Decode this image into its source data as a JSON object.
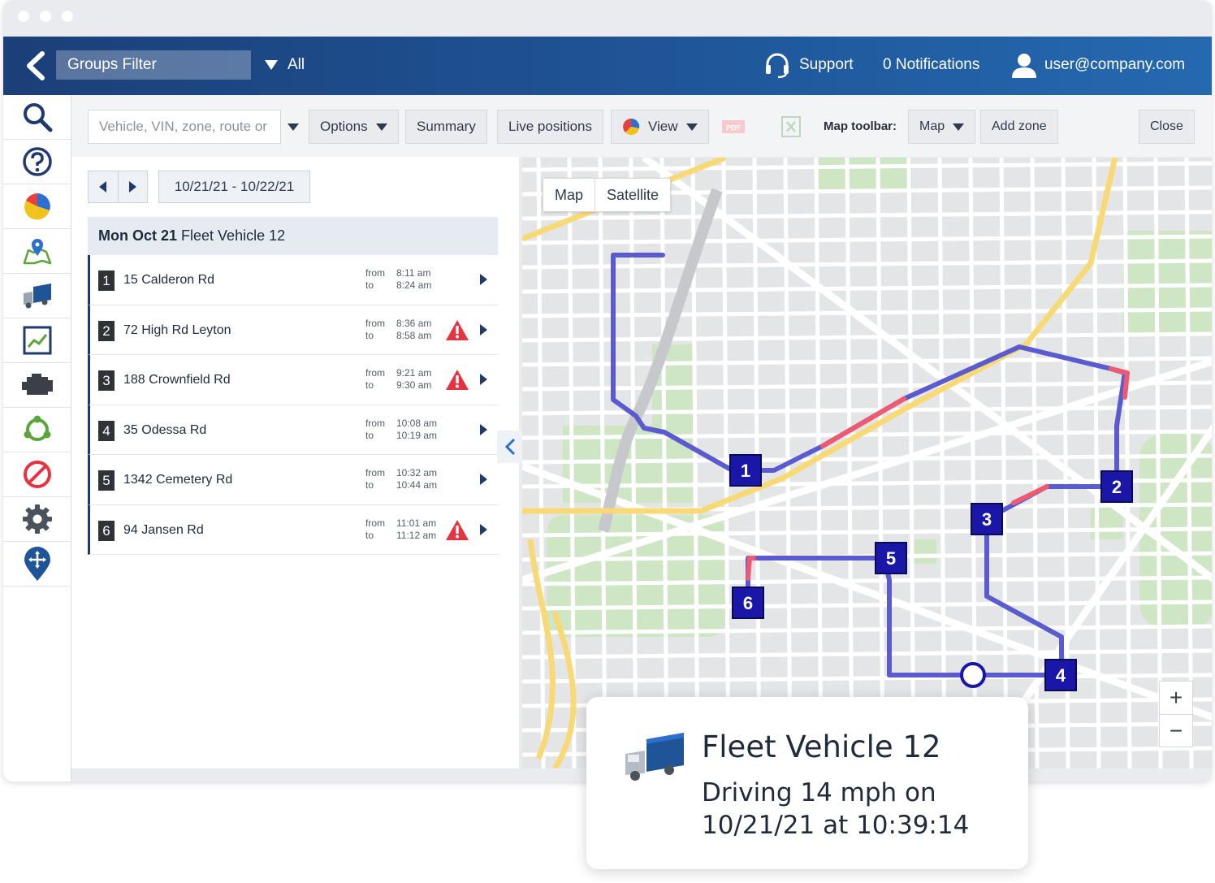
{
  "header": {
    "groups_filter": "Groups Filter",
    "all_label": "All",
    "support_label": "Support",
    "notifications_label": "0 Notifications",
    "user_email": "user@company.com"
  },
  "sidebar": {
    "items": [
      {
        "icon": "search-icon"
      },
      {
        "icon": "help-icon"
      },
      {
        "icon": "pie-chart-icon"
      },
      {
        "icon": "map-pin-icon"
      },
      {
        "icon": "truck-icon"
      },
      {
        "icon": "trend-chart-icon"
      },
      {
        "icon": "engine-icon"
      },
      {
        "icon": "network-icon"
      },
      {
        "icon": "exception-icon"
      },
      {
        "icon": "gear-icon"
      },
      {
        "icon": "marketplace-pin-icon"
      }
    ]
  },
  "toolbar": {
    "search_placeholder": "Vehicle, VIN, zone, route or",
    "options_label": "Options",
    "summary_label": "Summary",
    "live_positions_label": "Live positions",
    "view_label": "View",
    "pdf_label": "PDF",
    "map_toolbar_label": "Map toolbar:",
    "map_label": "Map",
    "add_zone_label": "Add zone",
    "close_label": "Close"
  },
  "trip_list": {
    "date_range": "10/21/21 - 10/22/21",
    "day": "Mon Oct 21",
    "vehicle": "Fleet Vehicle 12",
    "from_label": "from",
    "to_label": "to",
    "stops": [
      {
        "num": "1",
        "address": "15 Calderon Rd",
        "from": "8:11 am",
        "to": "8:24 am",
        "warning": false
      },
      {
        "num": "2",
        "address": "72 High Rd Leyton",
        "from": "8:36 am",
        "to": "8:58 am",
        "warning": true
      },
      {
        "num": "3",
        "address": "188 Crownfield Rd",
        "from": "9:21 am",
        "to": "9:30 am",
        "warning": true
      },
      {
        "num": "4",
        "address": "35 Odessa Rd",
        "from": "10:08 am",
        "to": "10:19 am",
        "warning": false
      },
      {
        "num": "5",
        "address": "1342 Cemetery Rd",
        "from": "10:32 am",
        "to": "10:44 am",
        "warning": false
      },
      {
        "num": "6",
        "address": "94 Jansen Rd",
        "from": "11:01 am",
        "to": "11:12 am",
        "warning": true
      }
    ]
  },
  "map": {
    "map_tab": "Map",
    "satellite_tab": "Satellite",
    "zoom_in": "+",
    "zoom_out": "−",
    "markers": [
      "1",
      "2",
      "3",
      "4",
      "5",
      "6"
    ],
    "route_color": "#5b5bd0",
    "speeding_color": "#ee5a72",
    "marker_color": "#1a17a8"
  },
  "popup": {
    "title": "Fleet Vehicle 12",
    "status_line1": "Driving 14 mph on",
    "status_line2": "10/21/21 at 10:39:14"
  }
}
